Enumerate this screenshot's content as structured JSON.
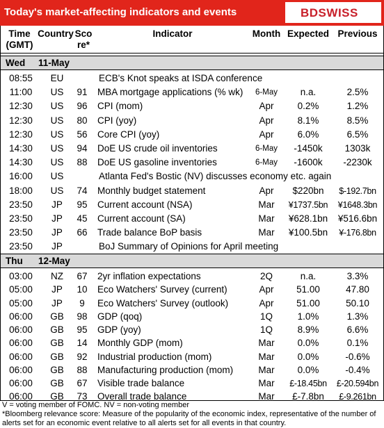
{
  "header": {
    "title": "Today's market-affecting indicators and events",
    "logo": "BDSWISS"
  },
  "columns": [
    "Time (GMT)",
    "Country",
    "Sco re*",
    "Indicator",
    "Month",
    "Expected",
    "Previous"
  ],
  "days": [
    {
      "day": "Wed",
      "date": "11-May",
      "rows": [
        [
          "08:55",
          "EU",
          "ECB's Knot speaks at ISDA conference"
        ],
        [
          "11:00",
          "US",
          91,
          "MBA mortgage applications (% wk)",
          "6-May",
          "n.a.",
          "2.5%"
        ],
        [
          "12:30",
          "US",
          96,
          "CPI (mom)",
          "Apr",
          "0.2%",
          "1.2%"
        ],
        [
          "12:30",
          "US",
          80,
          "CPI (yoy)",
          "Apr",
          "8.1%",
          "8.5%"
        ],
        [
          "12:30",
          "US",
          56,
          "Core CPI (yoy)",
          "Apr",
          "6.0%",
          "6.5%"
        ],
        [
          "14:30",
          "US",
          94,
          "DoE US crude oil inventories",
          "6-May",
          "-1450k",
          "1303k"
        ],
        [
          "14:30",
          "US",
          88,
          "DoE US gasoline inventories",
          "6-May",
          "-1600k",
          "-2230k"
        ],
        [
          "16:00",
          "US",
          "Atlanta Fed's Bostic (NV) discusses economy etc. again"
        ],
        [
          "18:00",
          "US",
          74,
          "Monthly budget statement",
          "Apr",
          "$220bn",
          "$-192.7bn"
        ],
        [
          "23:50",
          "JP",
          95,
          "Current account  (NSA)",
          "Mar",
          "¥1737.5bn",
          "¥1648.3bn"
        ],
        [
          "23:50",
          "JP",
          45,
          "Current account (SA)",
          "Mar",
          "¥628.1bn",
          "¥516.6bn"
        ],
        [
          "23:50",
          "JP",
          66,
          "Trade balance BoP basis",
          "Mar",
          "¥100.5bn",
          "¥-176.8bn"
        ],
        [
          "23:50",
          "JP",
          "BoJ Summary of Opinions for April meeting"
        ]
      ]
    },
    {
      "day": "Thu",
      "date": "12-May",
      "rows": [
        [
          "03:00",
          "NZ",
          67,
          "2yr inflation expectations",
          "2Q",
          "n.a.",
          "3.3%"
        ],
        [
          "05:00",
          "JP",
          10,
          "Eco Watchers' Survey (current)",
          "Apr",
          "51.00",
          "47.80"
        ],
        [
          "05:00",
          "JP",
          9,
          "Eco Watchers' Survey (outlook)",
          "Apr",
          "51.00",
          "50.10"
        ],
        [
          "06:00",
          "GB",
          98,
          "GDP (qoq)",
          "1Q",
          "1.0%",
          "1.3%"
        ],
        [
          "06:00",
          "GB",
          95,
          "GDP (yoy)",
          "1Q",
          "8.9%",
          "6.6%"
        ],
        [
          "06:00",
          "GB",
          14,
          "Monthly GDP (mom)",
          "Mar",
          "0.0%",
          "0.1%"
        ],
        [
          "06:00",
          "GB",
          92,
          "Industrial production (mom)",
          "Mar",
          "0.0%",
          "-0.6%"
        ],
        [
          "06:00",
          "GB",
          88,
          "Manufacturing production (mom)",
          "Mar",
          "0.0%",
          "-0.4%"
        ],
        [
          "06:00",
          "GB",
          67,
          "Visible trade balance",
          "Mar",
          "£-18.45bn",
          "£-20.594bn"
        ],
        [
          "06:00",
          "GB",
          73,
          "Overall trade balance",
          "Mar",
          "£-7.8bn",
          "£-9.261bn"
        ]
      ]
    }
  ],
  "notes": [
    "V = voting member of FOMC. NV = non-voting member",
    "*Bloomberg relevance score:  Measure of the popularity of the economic index, representative of the number of",
    "alerts set for an economic event relative to all alerts set for all events in that country."
  ]
}
